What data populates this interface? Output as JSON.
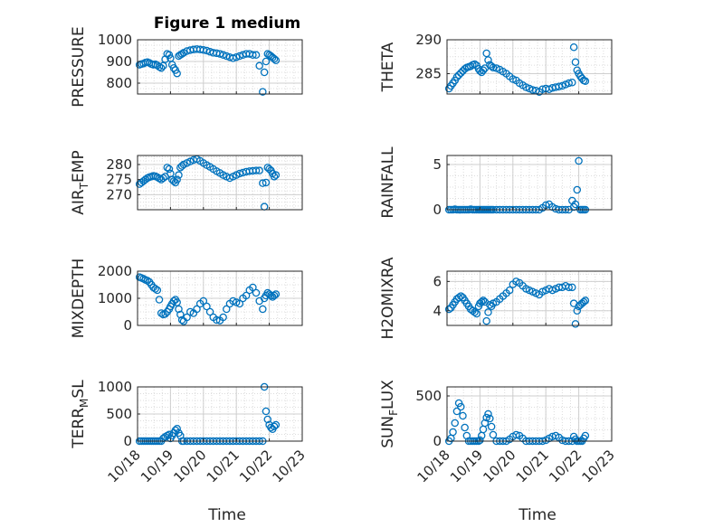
{
  "figure": {
    "title": "Figure 1 medium",
    "time_label": "Time"
  },
  "style": {
    "marker_color": "#0072BD",
    "axes_color": "#262626",
    "grid_color": "#dcdcdc",
    "marker": "open-circle"
  },
  "chart_data": [
    {
      "type": "scatter",
      "ylabel": "PRESSURE",
      "ylim": [
        750,
        1000
      ],
      "yticks": [
        800,
        900,
        1000
      ],
      "xlim": [
        0,
        5
      ],
      "xtick_labels": [
        "10/18",
        "10/19",
        "10/20",
        "10/21",
        "10/22",
        "10/23"
      ],
      "grid": "dotted",
      "legend": "none",
      "x": [
        0.06,
        0.12,
        0.18,
        0.24,
        0.3,
        0.36,
        0.42,
        0.48,
        0.54,
        0.6,
        0.66,
        0.72,
        0.78,
        0.84,
        0.9,
        0.96,
        1.0,
        1.05,
        1.1,
        1.15,
        1.2,
        1.25,
        1.3,
        1.35,
        1.4,
        1.5,
        1.6,
        1.7,
        1.8,
        1.9,
        2.0,
        2.1,
        2.2,
        2.3,
        2.4,
        2.5,
        2.6,
        2.7,
        2.8,
        2.9,
        3.0,
        3.1,
        3.2,
        3.3,
        3.4,
        3.5,
        3.6,
        3.7,
        3.8,
        3.85,
        3.9,
        3.95,
        4.0,
        4.05,
        4.1,
        4.15,
        4.2
      ],
      "y": [
        885,
        888,
        890,
        895,
        897,
        893,
        888,
        885,
        887,
        882,
        875,
        870,
        880,
        910,
        935,
        930,
        915,
        885,
        870,
        860,
        845,
        925,
        930,
        935,
        940,
        948,
        952,
        955,
        957,
        955,
        953,
        950,
        945,
        940,
        938,
        935,
        930,
        925,
        920,
        915,
        920,
        925,
        930,
        935,
        935,
        930,
        930,
        880,
        760,
        850,
        900,
        935,
        930,
        925,
        918,
        912,
        905
      ]
    },
    {
      "type": "scatter",
      "ylabel": "THETA",
      "ylim": [
        282,
        290
      ],
      "yticks": [
        285,
        290
      ],
      "xlim": [
        0,
        5
      ],
      "xtick_labels": [
        "10/18",
        "10/19",
        "10/20",
        "10/21",
        "10/22",
        "10/23"
      ],
      "grid": "dotted",
      "legend": "none",
      "x": [
        0.06,
        0.12,
        0.18,
        0.24,
        0.3,
        0.36,
        0.42,
        0.48,
        0.54,
        0.6,
        0.66,
        0.72,
        0.78,
        0.84,
        0.9,
        0.96,
        1.0,
        1.05,
        1.1,
        1.15,
        1.2,
        1.25,
        1.3,
        1.35,
        1.4,
        1.5,
        1.6,
        1.7,
        1.8,
        1.9,
        2.0,
        2.1,
        2.2,
        2.3,
        2.4,
        2.5,
        2.6,
        2.7,
        2.8,
        2.9,
        3.0,
        3.1,
        3.2,
        3.3,
        3.4,
        3.5,
        3.6,
        3.7,
        3.8,
        3.85,
        3.9,
        3.95,
        4.0,
        4.05,
        4.1,
        4.15,
        4.2
      ],
      "y": [
        282.8,
        283.2,
        283.6,
        284.0,
        284.5,
        284.8,
        285.1,
        285.4,
        285.7,
        285.9,
        286.0,
        286.1,
        286.3,
        286.4,
        286.2,
        285.7,
        285.4,
        285.2,
        285.5,
        285.8,
        288.0,
        287.0,
        286.3,
        286.1,
        285.9,
        285.8,
        285.6,
        285.3,
        285.0,
        284.6,
        284.2,
        284.0,
        283.6,
        283.3,
        283.0,
        282.8,
        282.6,
        282.5,
        282.3,
        282.7,
        282.8,
        282.7,
        282.9,
        283.0,
        283.1,
        283.2,
        283.4,
        283.6,
        283.7,
        288.9,
        286.7,
        285.5,
        285.0,
        284.6,
        284.3,
        284.0,
        283.9
      ]
    },
    {
      "type": "scatter",
      "ylabel": "AIR_TEMP",
      "ylim": [
        265,
        283
      ],
      "yticks": [
        270,
        275,
        280
      ],
      "xlim": [
        0,
        5
      ],
      "xtick_labels": [
        "10/18",
        "10/19",
        "10/20",
        "10/21",
        "10/22",
        "10/23"
      ],
      "grid": "dotted",
      "legend": "none",
      "x": [
        0.06,
        0.12,
        0.18,
        0.24,
        0.3,
        0.36,
        0.42,
        0.48,
        0.54,
        0.6,
        0.66,
        0.72,
        0.78,
        0.84,
        0.9,
        0.96,
        1.0,
        1.05,
        1.1,
        1.15,
        1.2,
        1.25,
        1.3,
        1.35,
        1.4,
        1.5,
        1.6,
        1.7,
        1.8,
        1.9,
        2.0,
        2.1,
        2.2,
        2.3,
        2.4,
        2.5,
        2.6,
        2.7,
        2.8,
        2.9,
        3.0,
        3.1,
        3.2,
        3.3,
        3.4,
        3.5,
        3.6,
        3.7,
        3.8,
        3.85,
        3.9,
        3.95,
        4.0,
        4.05,
        4.1,
        4.15,
        4.2
      ],
      "y": [
        273.5,
        274.0,
        274.5,
        275.0,
        275.5,
        275.8,
        276.0,
        276.2,
        276.1,
        275.8,
        275.4,
        275.0,
        275.5,
        276.0,
        279.0,
        278.5,
        277.0,
        275.0,
        274.5,
        274.0,
        275.0,
        276.5,
        279.0,
        279.5,
        280.0,
        280.5,
        281.0,
        281.5,
        281.8,
        281.2,
        280.5,
        279.8,
        279.2,
        278.5,
        277.8,
        277.2,
        276.5,
        276.0,
        275.5,
        276.0,
        276.5,
        277.0,
        277.3,
        277.6,
        277.8,
        277.9,
        278.0,
        278.0,
        273.8,
        266.0,
        274.0,
        279.0,
        278.5,
        278.0,
        277.0,
        276.0,
        276.5
      ]
    },
    {
      "type": "scatter",
      "ylabel": "RAINFALL",
      "ylim": [
        0,
        6
      ],
      "yticks": [
        0,
        5
      ],
      "xlim": [
        0,
        5
      ],
      "xtick_labels": [
        "10/18",
        "10/19",
        "10/20",
        "10/21",
        "10/22",
        "10/23"
      ],
      "grid": "dotted",
      "legend": "none",
      "x": [
        0.06,
        0.12,
        0.18,
        0.24,
        0.3,
        0.36,
        0.42,
        0.48,
        0.54,
        0.6,
        0.66,
        0.72,
        0.78,
        0.84,
        0.9,
        0.96,
        1.0,
        1.05,
        1.1,
        1.15,
        1.2,
        1.25,
        1.3,
        1.35,
        1.4,
        1.5,
        1.6,
        1.7,
        1.8,
        1.9,
        2.0,
        2.1,
        2.2,
        2.3,
        2.4,
        2.5,
        2.6,
        2.7,
        2.8,
        2.9,
        3.0,
        3.1,
        3.2,
        3.3,
        3.4,
        3.5,
        3.6,
        3.7,
        3.8,
        3.85,
        3.9,
        3.95,
        4.0,
        4.05,
        4.1,
        4.15,
        4.2
      ],
      "y": [
        0,
        0,
        0,
        0.05,
        0,
        0,
        0,
        0,
        0,
        0,
        0,
        0.05,
        0,
        0,
        0,
        0,
        0,
        0,
        0,
        0,
        0,
        0,
        0,
        0,
        0,
        0,
        0,
        0,
        0,
        0,
        0,
        0,
        0,
        0,
        0,
        0,
        0,
        0,
        0,
        0.2,
        0.5,
        0.6,
        0.3,
        0.1,
        0,
        0,
        0,
        0,
        1.0,
        0.3,
        0.6,
        2.2,
        5.4,
        0,
        0,
        0,
        0
      ]
    },
    {
      "type": "scatter",
      "ylabel": "MIXDEPTH",
      "ylim": [
        0,
        2000
      ],
      "yticks": [
        0,
        1000,
        2000
      ],
      "xlim": [
        0,
        5
      ],
      "xtick_labels": [
        "10/18",
        "10/19",
        "10/20",
        "10/21",
        "10/22",
        "10/23"
      ],
      "grid": "dotted",
      "legend": "none",
      "x": [
        0.06,
        0.12,
        0.18,
        0.24,
        0.3,
        0.36,
        0.42,
        0.48,
        0.54,
        0.6,
        0.66,
        0.72,
        0.78,
        0.84,
        0.9,
        0.96,
        1.0,
        1.05,
        1.1,
        1.15,
        1.2,
        1.25,
        1.3,
        1.35,
        1.4,
        1.5,
        1.6,
        1.7,
        1.8,
        1.9,
        2.0,
        2.1,
        2.2,
        2.3,
        2.4,
        2.5,
        2.6,
        2.7,
        2.8,
        2.9,
        3.0,
        3.1,
        3.2,
        3.3,
        3.4,
        3.5,
        3.6,
        3.7,
        3.8,
        3.85,
        3.9,
        3.95,
        4.0,
        4.05,
        4.1,
        4.15,
        4.2
      ],
      "y": [
        1780,
        1750,
        1720,
        1680,
        1650,
        1600,
        1500,
        1400,
        1350,
        1300,
        950,
        450,
        400,
        420,
        500,
        600,
        700,
        800,
        900,
        950,
        850,
        600,
        400,
        200,
        150,
        300,
        500,
        450,
        600,
        800,
        900,
        700,
        500,
        300,
        200,
        180,
        300,
        600,
        800,
        900,
        850,
        800,
        1000,
        1100,
        1300,
        1400,
        1200,
        900,
        600,
        1000,
        1100,
        1200,
        1150,
        1100,
        1050,
        1100,
        1150
      ]
    },
    {
      "type": "scatter",
      "ylabel": "H2OMIXRA",
      "ylim": [
        3,
        6.7
      ],
      "yticks": [
        4,
        6
      ],
      "xlim": [
        0,
        5
      ],
      "xtick_labels": [
        "10/18",
        "10/19",
        "10/20",
        "10/21",
        "10/22",
        "10/23"
      ],
      "grid": "dotted",
      "legend": "none",
      "x": [
        0.06,
        0.12,
        0.18,
        0.24,
        0.3,
        0.36,
        0.42,
        0.48,
        0.54,
        0.6,
        0.66,
        0.72,
        0.78,
        0.84,
        0.9,
        0.96,
        1.0,
        1.05,
        1.1,
        1.15,
        1.2,
        1.25,
        1.3,
        1.35,
        1.4,
        1.5,
        1.6,
        1.7,
        1.8,
        1.9,
        2.0,
        2.1,
        2.2,
        2.3,
        2.4,
        2.5,
        2.6,
        2.7,
        2.8,
        2.9,
        3.0,
        3.1,
        3.2,
        3.3,
        3.4,
        3.5,
        3.6,
        3.7,
        3.8,
        3.85,
        3.9,
        3.95,
        4.0,
        4.05,
        4.1,
        4.15,
        4.2
      ],
      "y": [
        4.1,
        4.2,
        4.4,
        4.6,
        4.8,
        4.9,
        5.0,
        4.9,
        4.7,
        4.5,
        4.3,
        4.1,
        4.0,
        3.9,
        3.8,
        4.3,
        4.5,
        4.6,
        4.7,
        4.6,
        3.3,
        3.9,
        4.4,
        4.3,
        4.5,
        4.6,
        4.8,
        5.0,
        5.2,
        5.4,
        5.8,
        6.0,
        5.9,
        5.7,
        5.5,
        5.4,
        5.3,
        5.2,
        5.1,
        5.3,
        5.4,
        5.5,
        5.4,
        5.5,
        5.6,
        5.6,
        5.7,
        5.6,
        5.6,
        4.5,
        3.1,
        4.0,
        4.3,
        4.4,
        4.5,
        4.6,
        4.7
      ]
    },
    {
      "type": "scatter",
      "ylabel": "TERR_MSL",
      "ylim": [
        0,
        1000
      ],
      "yticks": [
        0,
        500,
        1000
      ],
      "xlim": [
        0,
        5
      ],
      "xtick_labels": [
        "10/18",
        "10/19",
        "10/20",
        "10/21",
        "10/22",
        "10/23"
      ],
      "grid": "dotted",
      "legend": "none",
      "x": [
        0.06,
        0.12,
        0.18,
        0.24,
        0.3,
        0.36,
        0.42,
        0.48,
        0.54,
        0.6,
        0.66,
        0.72,
        0.78,
        0.84,
        0.9,
        0.96,
        1.0,
        1.05,
        1.1,
        1.15,
        1.2,
        1.25,
        1.3,
        1.35,
        1.4,
        1.5,
        1.6,
        1.7,
        1.8,
        1.9,
        2.0,
        2.1,
        2.2,
        2.3,
        2.4,
        2.5,
        2.6,
        2.7,
        2.8,
        2.9,
        3.0,
        3.1,
        3.2,
        3.3,
        3.4,
        3.5,
        3.6,
        3.7,
        3.8,
        3.85,
        3.9,
        3.95,
        4.0,
        4.05,
        4.1,
        4.15,
        4.2
      ],
      "y": [
        0,
        0,
        0,
        0,
        0,
        0,
        0,
        0,
        0,
        0,
        0,
        0,
        50,
        80,
        100,
        120,
        50,
        100,
        150,
        200,
        230,
        150,
        100,
        0,
        0,
        0,
        0,
        0,
        0,
        0,
        0,
        0,
        0,
        0,
        0,
        0,
        0,
        0,
        0,
        0,
        0,
        0,
        0,
        0,
        0,
        0,
        0,
        0,
        0,
        1000,
        550,
        400,
        300,
        250,
        220,
        270,
        300
      ]
    },
    {
      "type": "scatter",
      "ylabel": "SUN_FLUX",
      "ylim": [
        0,
        600
      ],
      "yticks": [
        0,
        500
      ],
      "xlim": [
        0,
        5
      ],
      "xtick_labels": [
        "10/18",
        "10/19",
        "10/20",
        "10/21",
        "10/22",
        "10/23"
      ],
      "grid": "dotted",
      "legend": "none",
      "x": [
        0.06,
        0.12,
        0.18,
        0.24,
        0.3,
        0.36,
        0.42,
        0.48,
        0.54,
        0.6,
        0.66,
        0.72,
        0.78,
        0.84,
        0.9,
        0.96,
        1.0,
        1.05,
        1.1,
        1.15,
        1.2,
        1.25,
        1.3,
        1.35,
        1.4,
        1.5,
        1.6,
        1.7,
        1.8,
        1.9,
        2.0,
        2.1,
        2.2,
        2.3,
        2.4,
        2.5,
        2.6,
        2.7,
        2.8,
        2.9,
        3.0,
        3.1,
        3.2,
        3.3,
        3.4,
        3.5,
        3.6,
        3.7,
        3.8,
        3.85,
        3.9,
        3.95,
        4.0,
        4.05,
        4.1,
        4.15,
        4.2
      ],
      "y": [
        0,
        30,
        100,
        200,
        330,
        420,
        380,
        280,
        150,
        60,
        0,
        0,
        0,
        0,
        0,
        0,
        10,
        60,
        130,
        200,
        260,
        300,
        250,
        160,
        70,
        0,
        0,
        0,
        0,
        20,
        50,
        70,
        60,
        30,
        0,
        0,
        0,
        0,
        0,
        0,
        10,
        30,
        50,
        60,
        40,
        10,
        0,
        0,
        0,
        50,
        20,
        0,
        0,
        0,
        0,
        30,
        60
      ]
    }
  ]
}
